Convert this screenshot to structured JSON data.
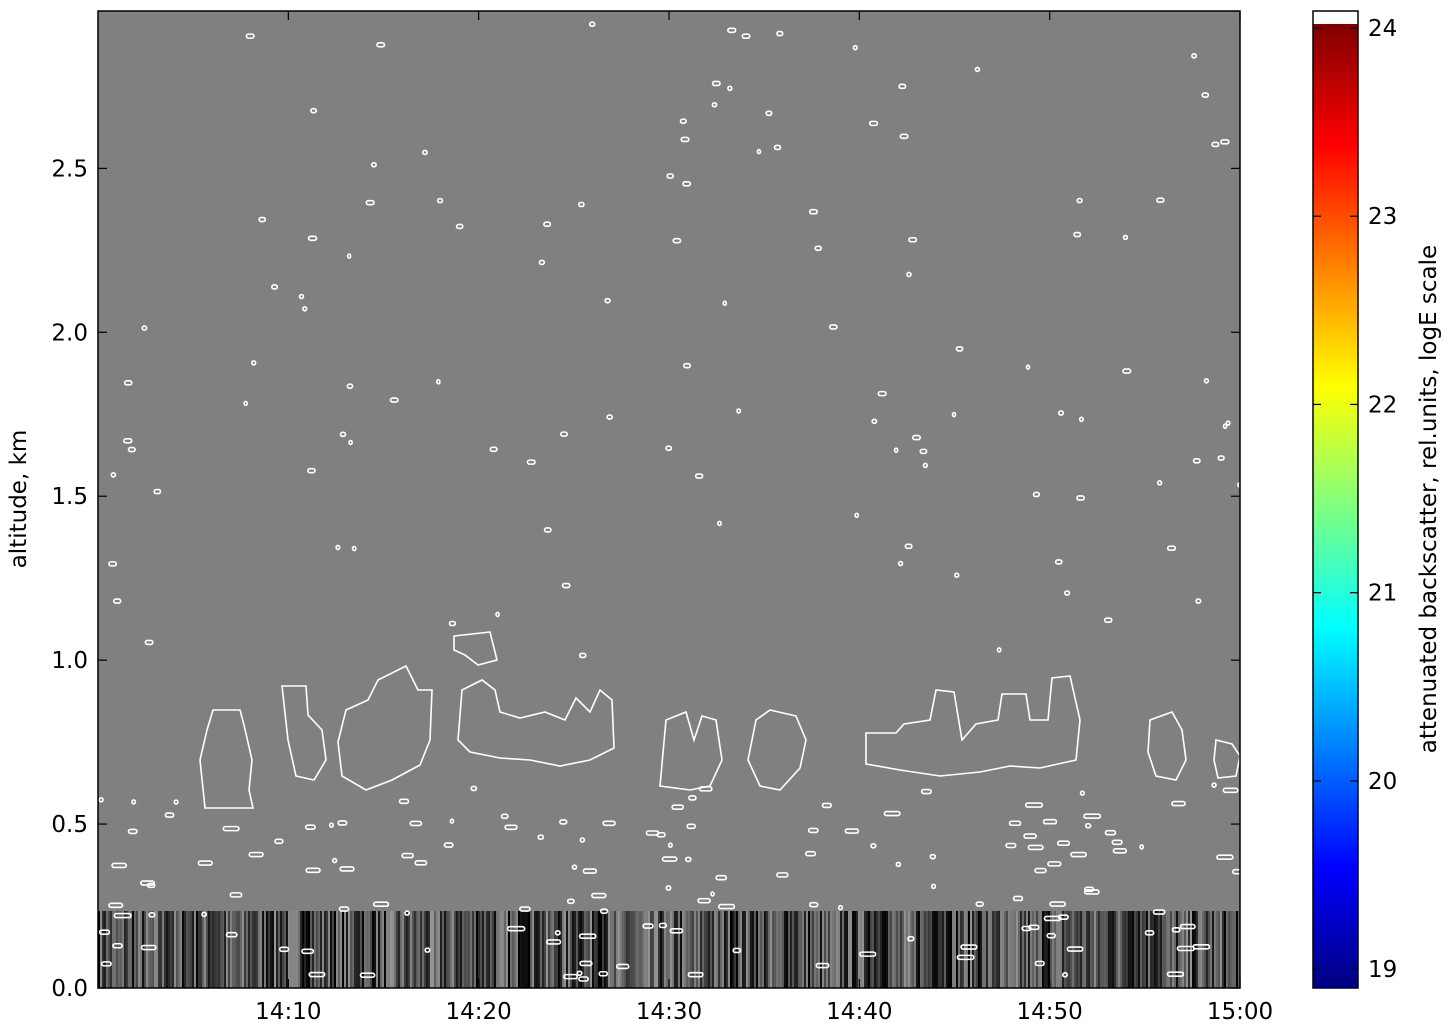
{
  "chart_data": {
    "type": "heatmap",
    "y_label": "altitude, km",
    "ylim": [
      0,
      2.98
    ],
    "yticks": [
      {
        "value": 0,
        "label": "0.0"
      },
      {
        "value": 0.5,
        "label": "0.5"
      },
      {
        "value": 1,
        "label": "1.0"
      },
      {
        "value": 1.5,
        "label": "1.5"
      },
      {
        "value": 2,
        "label": "2.0"
      },
      {
        "value": 2.5,
        "label": "2.5"
      }
    ],
    "xlim": [
      0,
      60
    ],
    "xticks": [
      {
        "value": 10,
        "label": "14:10"
      },
      {
        "value": 20,
        "label": "14:20"
      },
      {
        "value": 30,
        "label": "14:30"
      },
      {
        "value": 40,
        "label": "14:40"
      },
      {
        "value": 50,
        "label": "14:50"
      },
      {
        "value": 60,
        "label": "15:00"
      }
    ],
    "colorbar": {
      "label": "attenuated backscatter, rel.units, logE scale",
      "lim": [
        18.9,
        24.09
      ],
      "ticks": [
        19,
        20,
        21,
        22,
        23,
        24
      ],
      "colormap": "jet"
    }
  }
}
